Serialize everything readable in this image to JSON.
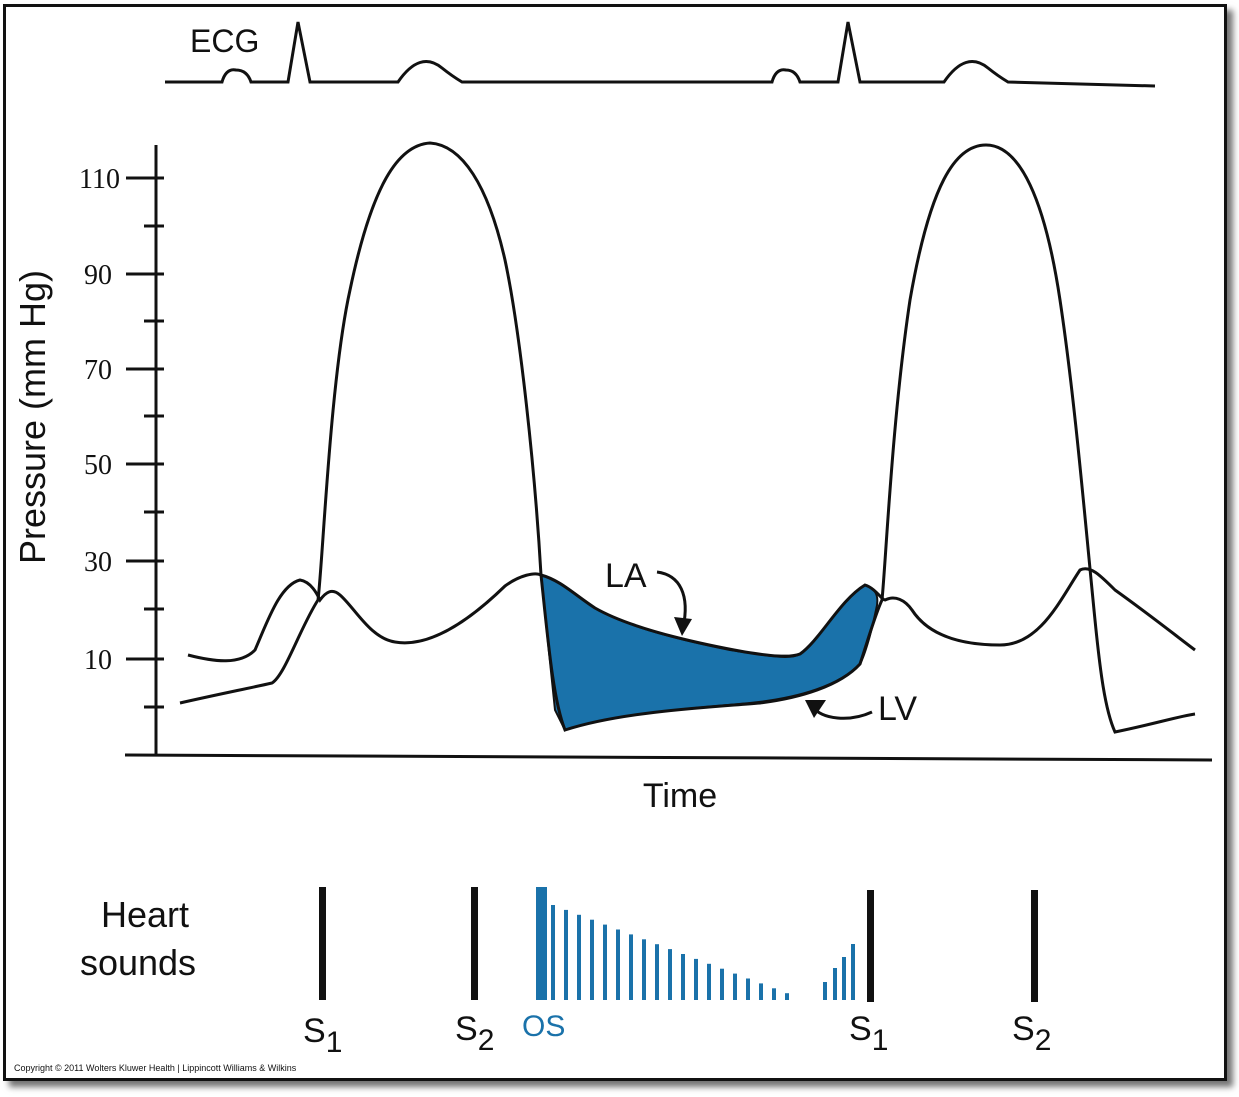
{
  "colors": {
    "ink": "#111111",
    "accent": "#1a72aa"
  },
  "ecg": {
    "label": "ECG"
  },
  "axes": {
    "y_label": "Pressure (mm Hg)",
    "x_label": "Time",
    "y_ticks": [
      "110",
      "90",
      "70",
      "50",
      "30",
      "10"
    ]
  },
  "curves": {
    "la_label": "LA",
    "lv_label": "LV"
  },
  "heart_sounds": {
    "label_line1": "Heart",
    "label_line2": "sounds",
    "markers": [
      {
        "base": "S",
        "sub": "1"
      },
      {
        "base": "S",
        "sub": "2"
      },
      {
        "base": "OS",
        "sub": ""
      },
      {
        "base": "S",
        "sub": "1"
      },
      {
        "base": "S",
        "sub": "2"
      }
    ]
  },
  "copyright": "Copyright © 2011 Wolters Kluwer Health | Lippincott Williams & Wilkins"
}
